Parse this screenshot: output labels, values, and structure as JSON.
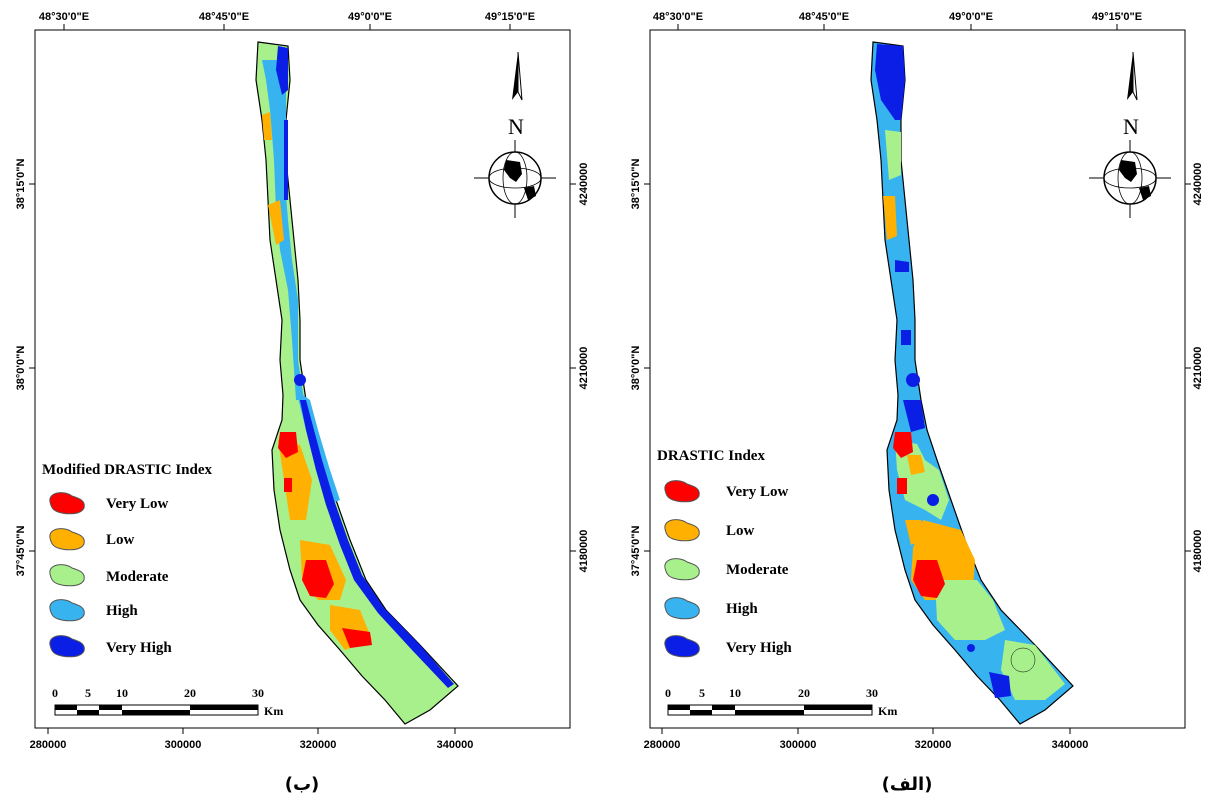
{
  "panels": [
    {
      "caption": "(ب)",
      "legend_title": "Modified DRASTIC Index",
      "legend": [
        "Very Low",
        "Low",
        "Moderate",
        "High",
        "Very High"
      ],
      "lon_labels": [
        "48°30'0\"E",
        "48°45'0\"E",
        "49°0'0\"E",
        "49°15'0\"E"
      ],
      "lat_labels": [
        "38°15'0\"N",
        "38°0'0\"N",
        "37°45'0\"N"
      ],
      "northing_labels": [
        "4240000",
        "4210000",
        "4180000"
      ],
      "easting_labels": [
        "280000",
        "300000",
        "320000",
        "340000"
      ],
      "scale_ticks": [
        "0",
        "5",
        "10",
        "20",
        "30"
      ],
      "scale_unit": "Km",
      "north_label": "N"
    },
    {
      "caption": "(الف)",
      "legend_title": "DRASTIC Index",
      "legend": [
        "Very Low",
        "Low",
        "Moderate",
        "High",
        "Very High"
      ],
      "lon_labels": [
        "48°30'0\"E",
        "48°45'0\"E",
        "49°0'0\"E",
        "49°15'0\"E"
      ],
      "lat_labels": [
        "38°15'0\"N",
        "38°0'0\"N",
        "37°45'0\"N"
      ],
      "northing_labels": [
        "4240000",
        "4210000",
        "4180000"
      ],
      "easting_labels": [
        "280000",
        "300000",
        "320000",
        "340000"
      ],
      "scale_ticks": [
        "0",
        "5",
        "10",
        "20",
        "30"
      ],
      "scale_unit": "Km",
      "north_label": "N"
    }
  ],
  "colors": {
    "very_low": "#ff0000",
    "low": "#ffb000",
    "moderate": "#a8f08c",
    "high": "#37b4f0",
    "very_high": "#0a1ee6"
  }
}
